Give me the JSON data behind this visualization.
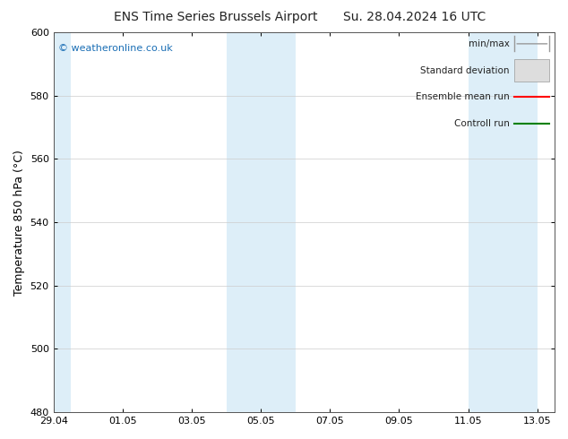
{
  "title_left": "ENS Time Series Brussels Airport",
  "title_right": "Su. 28.04.2024 16 UTC",
  "ylabel": "Temperature 850 hPa (°C)",
  "ylim": [
    480,
    600
  ],
  "yticks": [
    480,
    500,
    520,
    540,
    560,
    580,
    600
  ],
  "bg_color": "#ffffff",
  "plot_bg_color": "#ffffff",
  "shaded_band_color": "#ddeef8",
  "xtick_labels": [
    "29.04",
    "01.05",
    "03.05",
    "05.05",
    "07.05",
    "09.05",
    "11.05",
    "13.05"
  ],
  "watermark_text": "© weatheronline.co.uk",
  "watermark_color": "#1a6eb5",
  "legend_items": [
    {
      "label": "min/max"
    },
    {
      "label": "Standard deviation"
    },
    {
      "label": "Ensemble mean run"
    },
    {
      "label": "Controll run"
    }
  ],
  "legend_line_colors": [
    "#999999",
    "#cccccc",
    "#ff0000",
    "#008000"
  ],
  "grid_color": "#cccccc",
  "spine_color": "#555555",
  "title_fontsize": 10,
  "axis_label_fontsize": 9,
  "tick_fontsize": 8,
  "legend_fontsize": 7.5
}
